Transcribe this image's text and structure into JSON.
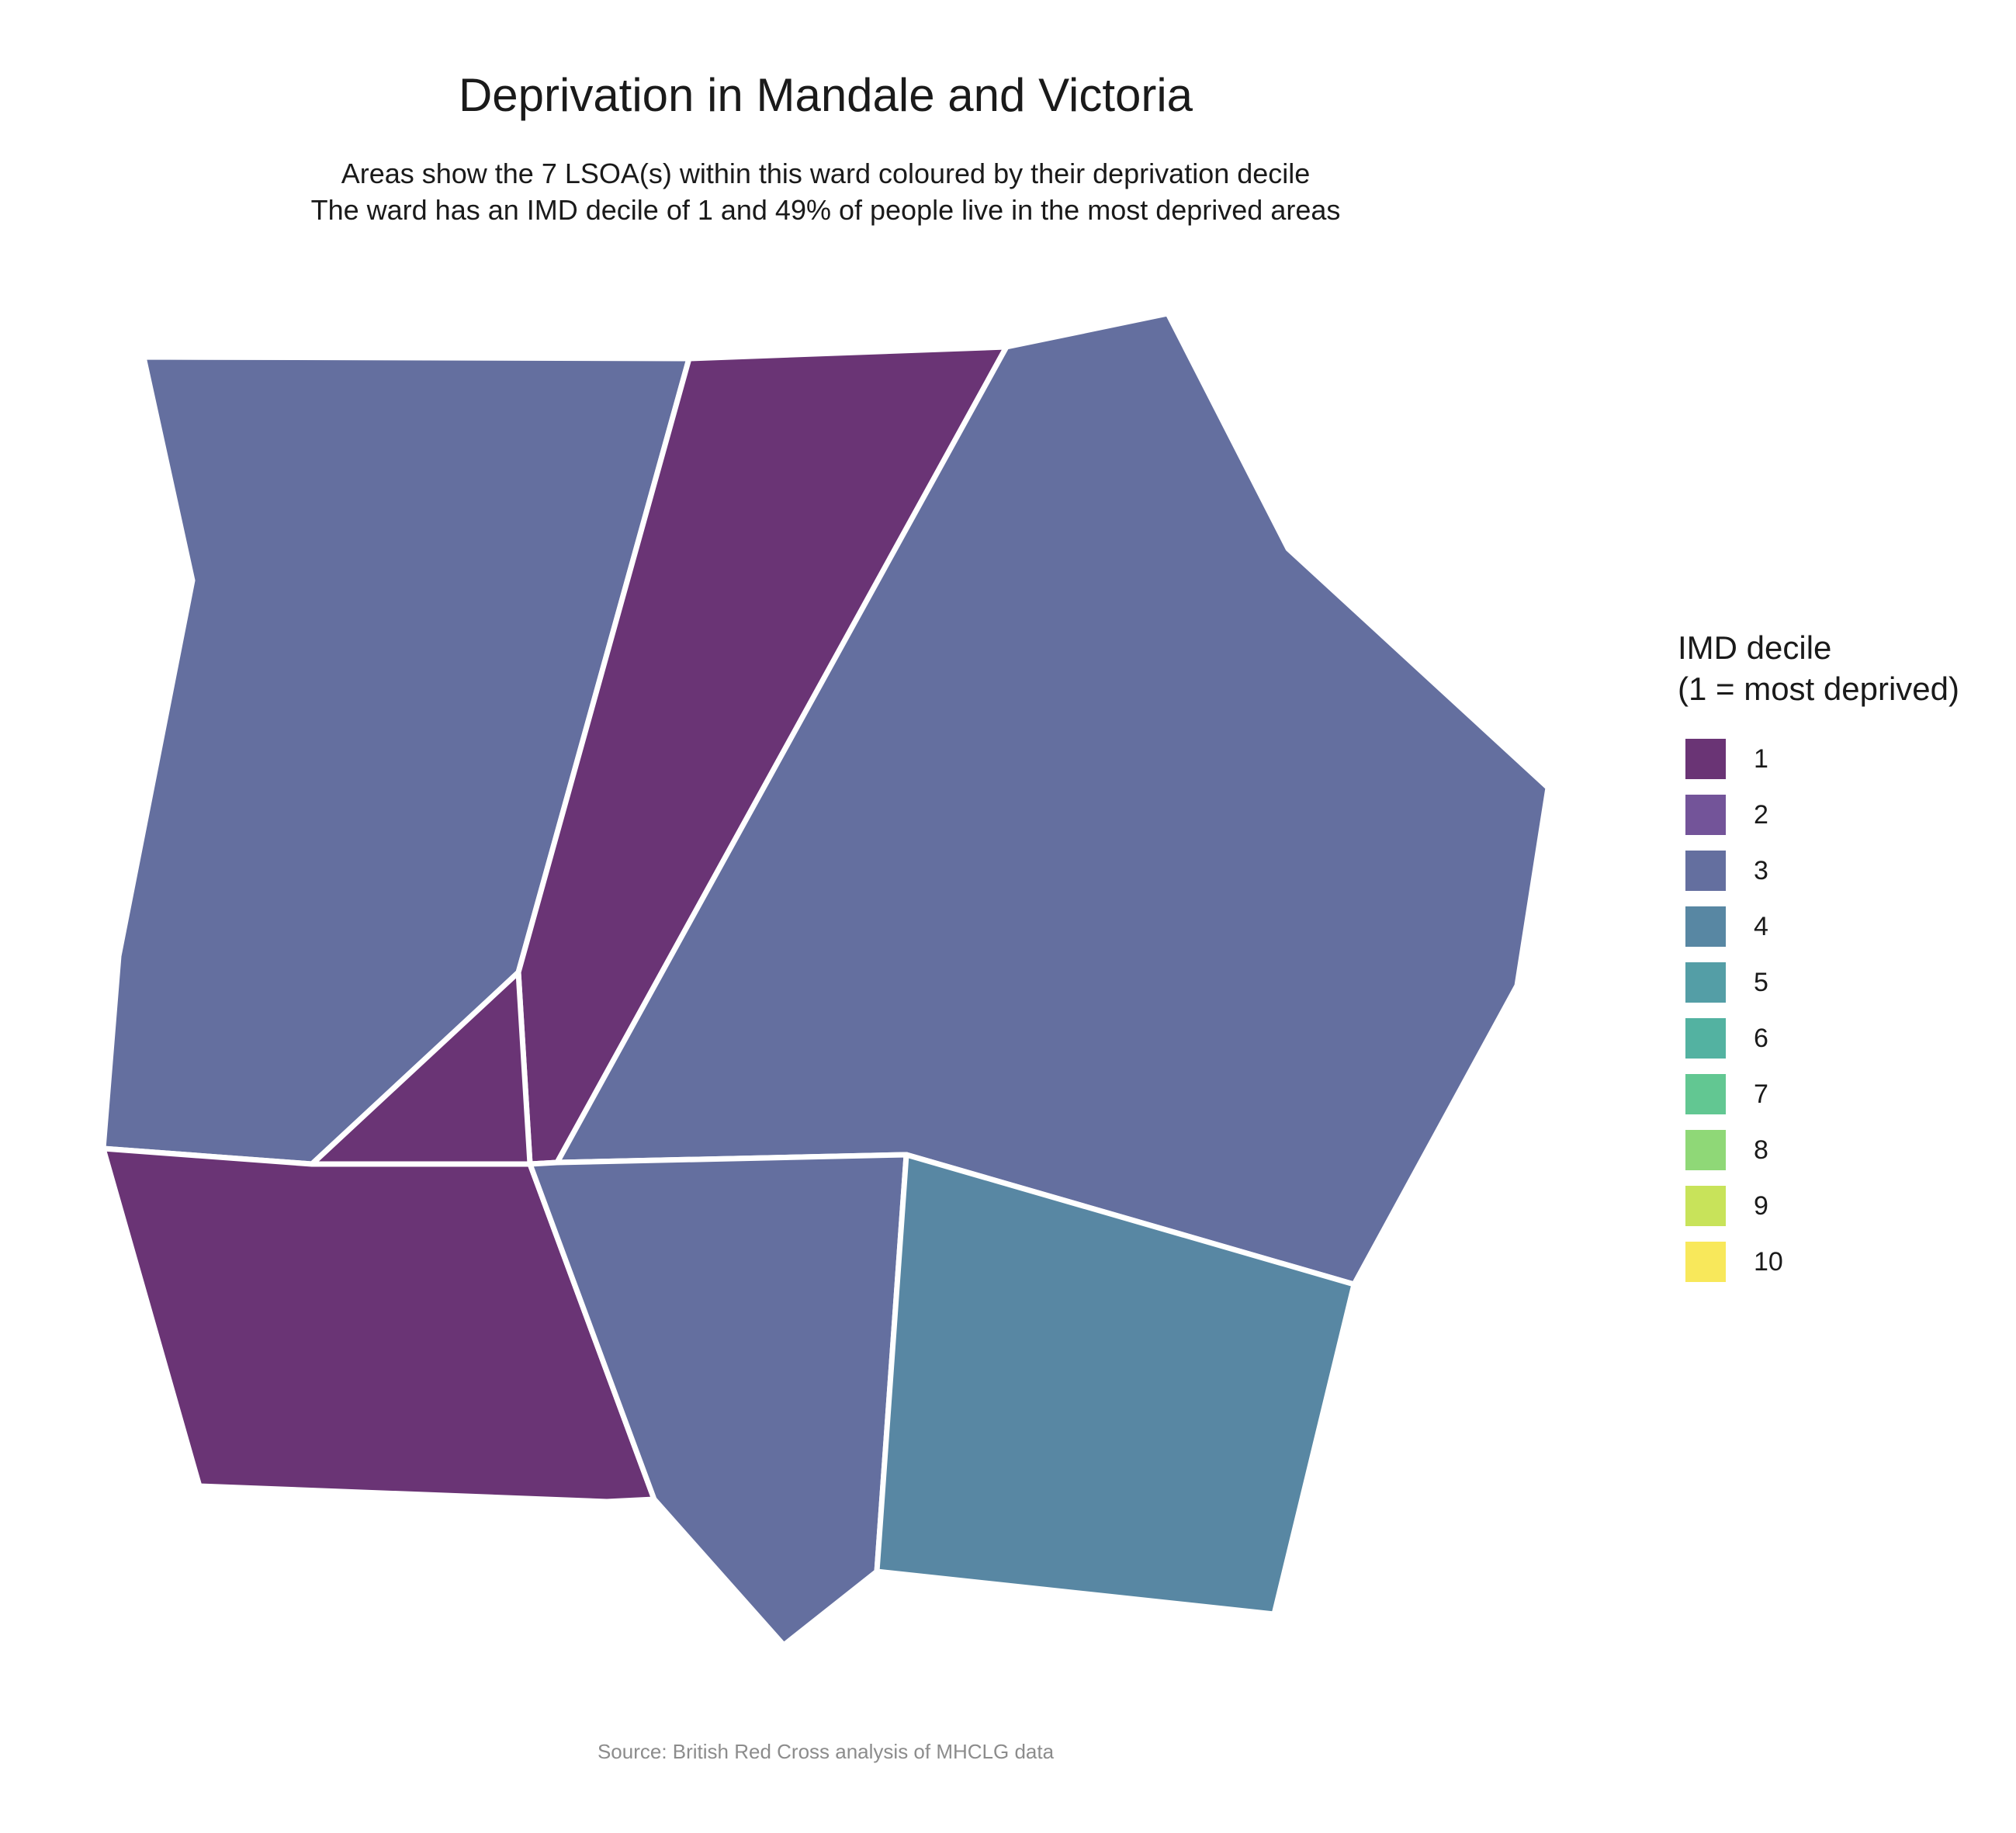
{
  "title": "Deprivation in Mandale and Victoria",
  "subtitle": {
    "line1": "Areas show the 7 LSOA(s) within this ward coloured by their deprivation decile",
    "line2": "The ward has an IMD decile of 1 and 49% of people live in the most deprived areas"
  },
  "legend": {
    "title_line1": "IMD decile",
    "title_line2": "(1 = most deprived)",
    "items": [
      {
        "label": "1",
        "color": "#6a3475"
      },
      {
        "label": "2",
        "color": "#735499"
      },
      {
        "label": "3",
        "color": "#646f9f"
      },
      {
        "label": "4",
        "color": "#5887a3"
      },
      {
        "label": "5",
        "color": "#549ea6"
      },
      {
        "label": "6",
        "color": "#53b2a1"
      },
      {
        "label": "7",
        "color": "#62c792"
      },
      {
        "label": "8",
        "color": "#8fd877"
      },
      {
        "label": "9",
        "color": "#c8e35a"
      },
      {
        "label": "10",
        "color": "#f8e85b"
      }
    ]
  },
  "areas": [
    {
      "id": "lsoa-1",
      "decile": 3
    },
    {
      "id": "lsoa-2",
      "decile": 1
    },
    {
      "id": "lsoa-3",
      "decile": 3
    },
    {
      "id": "lsoa-4",
      "decile": 1
    },
    {
      "id": "lsoa-5",
      "decile": 1
    },
    {
      "id": "lsoa-6",
      "decile": 3
    },
    {
      "id": "lsoa-7",
      "decile": 4
    }
  ],
  "source": "Source: British Red Cross analysis of MHCLG data"
}
